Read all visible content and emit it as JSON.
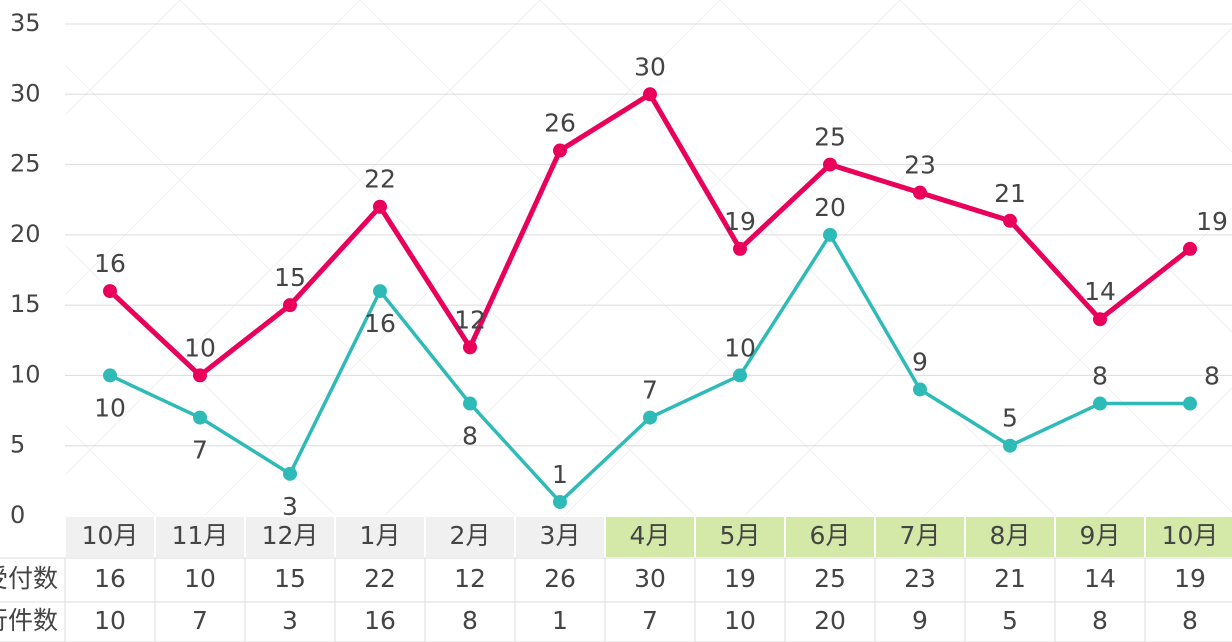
{
  "chart_data": {
    "type": "line",
    "categories": [
      "10月",
      "11月",
      "12月",
      "1月",
      "2月",
      "3月",
      "4月",
      "5月",
      "6月",
      "7月",
      "8月",
      "9月",
      "10月"
    ],
    "series": [
      {
        "name": "受付数",
        "color": "#e8005a",
        "values": [
          16,
          10,
          15,
          22,
          12,
          26,
          30,
          19,
          25,
          23,
          21,
          14,
          19
        ]
      },
      {
        "name": "実行件数",
        "color": "#2ebbb8",
        "values": [
          10,
          7,
          3,
          16,
          8,
          1,
          7,
          10,
          20,
          9,
          5,
          8,
          8
        ]
      }
    ],
    "ylim": [
      0,
      35
    ],
    "yticks": [
      0,
      5,
      10,
      15,
      20,
      25,
      30,
      35
    ],
    "grid": true
  }
}
